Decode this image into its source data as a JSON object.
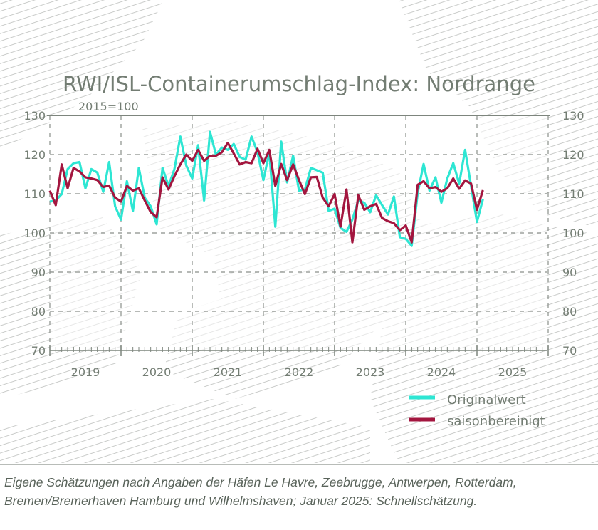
{
  "chart_data": {
    "type": "line",
    "title": "RWI/ISL-Containerumschlag-Index: Nordrange",
    "subtitle": "2015=100",
    "xlabel": "",
    "ylabel": "",
    "ylim": [
      70,
      130
    ],
    "yticks": [
      70,
      80,
      90,
      100,
      110,
      120,
      130
    ],
    "year_labels": [
      "2019",
      "2020",
      "2021",
      "2022",
      "2023",
      "2024",
      "2025"
    ],
    "xlim": [
      "2019-01",
      "2025-12"
    ],
    "grid": true,
    "legend_position": "bottom-right",
    "x": [
      "2018-12",
      "2019-01",
      "2019-02",
      "2019-03",
      "2019-04",
      "2019-05",
      "2019-06",
      "2019-07",
      "2019-08",
      "2019-09",
      "2019-10",
      "2019-11",
      "2019-12",
      "2020-01",
      "2020-02",
      "2020-03",
      "2020-04",
      "2020-05",
      "2020-06",
      "2020-07",
      "2020-08",
      "2020-09",
      "2020-10",
      "2020-11",
      "2020-12",
      "2021-01",
      "2021-02",
      "2021-03",
      "2021-04",
      "2021-05",
      "2021-06",
      "2021-07",
      "2021-08",
      "2021-09",
      "2021-10",
      "2021-11",
      "2021-12",
      "2022-01",
      "2022-02",
      "2022-03",
      "2022-04",
      "2022-05",
      "2022-06",
      "2022-07",
      "2022-08",
      "2022-09",
      "2022-10",
      "2022-11",
      "2022-12",
      "2023-01",
      "2023-02",
      "2023-03",
      "2023-04",
      "2023-05",
      "2023-06",
      "2023-07",
      "2023-08",
      "2023-09",
      "2023-10",
      "2023-11",
      "2023-12",
      "2024-01",
      "2024-02",
      "2024-03",
      "2024-04",
      "2024-05",
      "2024-06",
      "2024-07",
      "2024-08",
      "2024-09",
      "2024-10",
      "2024-11",
      "2024-12",
      "2025-01"
    ],
    "series": [
      {
        "name": "Originalwert",
        "color": "#2ee6d3",
        "values": [
          108,
          108.3,
          109.9,
          116.3,
          117.8,
          118.1,
          111.4,
          116.3,
          115.4,
          110.5,
          118.1,
          106.8,
          103.4,
          113.2,
          105.6,
          116.6,
          109,
          106.8,
          102.2,
          116.6,
          112,
          116.3,
          124.6,
          117.2,
          113.9,
          122.4,
          108.3,
          125.8,
          120,
          121.8,
          121.2,
          122.7,
          119.4,
          118.7,
          124.6,
          120.6,
          113.5,
          120.6,
          101.6,
          123.3,
          112.9,
          119.7,
          110.8,
          111.1,
          116.6,
          116,
          115.4,
          105.6,
          106.2,
          101.3,
          100.3,
          103.4,
          108.3,
          107.7,
          105.3,
          109.6,
          107.1,
          104.7,
          109.3,
          98.9,
          98.5,
          96.7,
          110.2,
          117.6,
          110.8,
          114.2,
          107.7,
          113.9,
          117.8,
          112.6,
          121.2,
          112,
          102.8,
          108.6
        ]
      },
      {
        "name": "saisonbereinigt",
        "color": "#a3163f",
        "values": [
          110.8,
          107.1,
          117.5,
          111.4,
          116.6,
          115.7,
          114.2,
          113.9,
          113.5,
          111.7,
          112.1,
          109,
          108,
          112,
          110.8,
          111.4,
          108.3,
          105.3,
          104,
          114.2,
          111.1,
          114.5,
          117.5,
          120,
          118.4,
          121.2,
          118.4,
          119.7,
          119.7,
          120.6,
          123,
          120.3,
          117.5,
          118.1,
          117.8,
          121.5,
          117.8,
          121.2,
          112,
          117.6,
          113.5,
          117.5,
          113.5,
          109.9,
          114.2,
          114.3,
          109,
          106.8,
          109.9,
          101.6,
          111.1,
          97.6,
          109.6,
          105.9,
          106.8,
          107.4,
          103.8,
          103,
          102.5,
          100.7,
          101.9,
          97.6,
          112.3,
          113.2,
          111.4,
          111.7,
          110.5,
          111.4,
          113.9,
          111.3,
          113.4,
          112.6,
          105.9,
          110.9
        ]
      }
    ]
  },
  "footnote": {
    "line1": "Eigene Schätzungen nach Angaben der Häfen Le Havre, Zeebrugge, Antwerpen, Rotterdam,",
    "line2": "Bremen/Bremerhaven Hamburg und Wilhelmshaven; Januar 2025: Schnellschätzung."
  }
}
